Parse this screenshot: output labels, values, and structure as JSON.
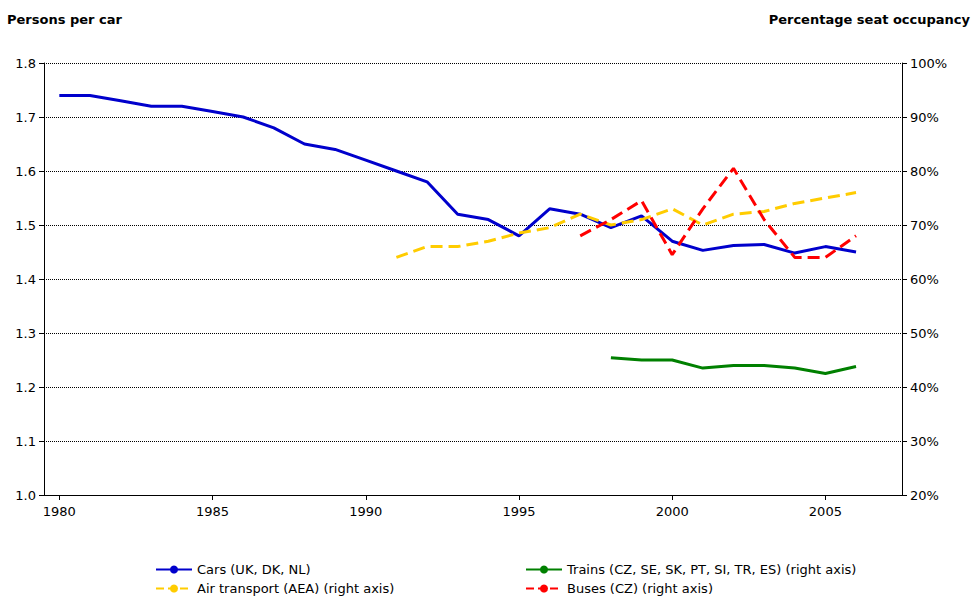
{
  "chart_data": {
    "type": "line",
    "y_label": "Persons per car",
    "y2_label": "Percentage seat occupancy",
    "x": [
      1980,
      1981,
      1982,
      1983,
      1984,
      1985,
      1986,
      1987,
      1988,
      1989,
      1990,
      1991,
      1992,
      1993,
      1994,
      1995,
      1996,
      1997,
      1998,
      1999,
      2000,
      2001,
      2002,
      2003,
      2004,
      2005,
      2006
    ],
    "xlim": [
      1979.5,
      2007.5
    ],
    "xticks": [
      1980,
      1985,
      1990,
      1995,
      2000,
      2005
    ],
    "ylim": [
      1,
      1.8
    ],
    "yticks": [
      {
        "value": 1,
        "label": "1.0"
      },
      1.1,
      1.2,
      1.3,
      1.4,
      1.5,
      1.6,
      1.7,
      1.8
    ],
    "y2lim": [
      20,
      100
    ],
    "y2ticks": [
      {
        "value": 20,
        "label": "20%"
      },
      {
        "value": 30,
        "label": "30%"
      },
      {
        "value": 40,
        "label": "40%"
      },
      {
        "value": 50,
        "label": "50%"
      },
      {
        "value": 60,
        "label": "60%"
      },
      {
        "value": 70,
        "label": "70%"
      },
      {
        "value": 80,
        "label": "80%"
      },
      {
        "value": 90,
        "label": "90%"
      },
      {
        "value": 100,
        "label": "100%"
      }
    ],
    "grid": true,
    "legend": "bottom",
    "series": [
      {
        "name": "Cars (UK, DK, NL)",
        "color": "#0000cc",
        "line_style": "solid",
        "values": [
          1.74,
          1.74,
          1.73,
          1.72,
          1.72,
          1.71,
          1.7,
          1.68,
          1.65,
          1.64,
          1.62,
          1.6,
          1.58,
          1.52,
          1.51,
          1.48,
          1.53,
          1.52,
          1.495,
          1.517,
          1.47,
          1.453,
          1.462,
          1.464,
          1.448,
          1.46,
          1.45
        ]
      },
      {
        "name": "Trains (CZ, SE, SK, PT, SI, TR, ES) (right axis)",
        "color": "#008000",
        "line_style": "solid",
        "axis": "y2",
        "values": [
          null,
          null,
          null,
          null,
          null,
          null,
          null,
          null,
          null,
          null,
          null,
          null,
          null,
          null,
          null,
          null,
          null,
          null,
          45.4,
          45,
          45,
          43.5,
          44,
          44,
          43.5,
          42.5,
          43.8
        ]
      },
      {
        "name": "Air transport (AEA) (right axis)",
        "color": "#ffcc00",
        "line_style": "dashed",
        "axis": "y2",
        "values": [
          null,
          null,
          null,
          null,
          null,
          null,
          null,
          null,
          null,
          null,
          null,
          64,
          66,
          66,
          67,
          68.5,
          69.5,
          72,
          70,
          71,
          73,
          70,
          72,
          72.5,
          74,
          75,
          76
        ]
      },
      {
        "name": "Buses (CZ) (right axis)",
        "color": "#ff0000",
        "line_style": "dashed",
        "axis": "y2",
        "values": [
          null,
          null,
          null,
          null,
          null,
          null,
          null,
          null,
          null,
          null,
          null,
          null,
          null,
          null,
          null,
          null,
          null,
          68,
          71,
          74.5,
          64.5,
          73,
          80.5,
          71,
          64,
          64,
          68
        ]
      }
    ]
  }
}
